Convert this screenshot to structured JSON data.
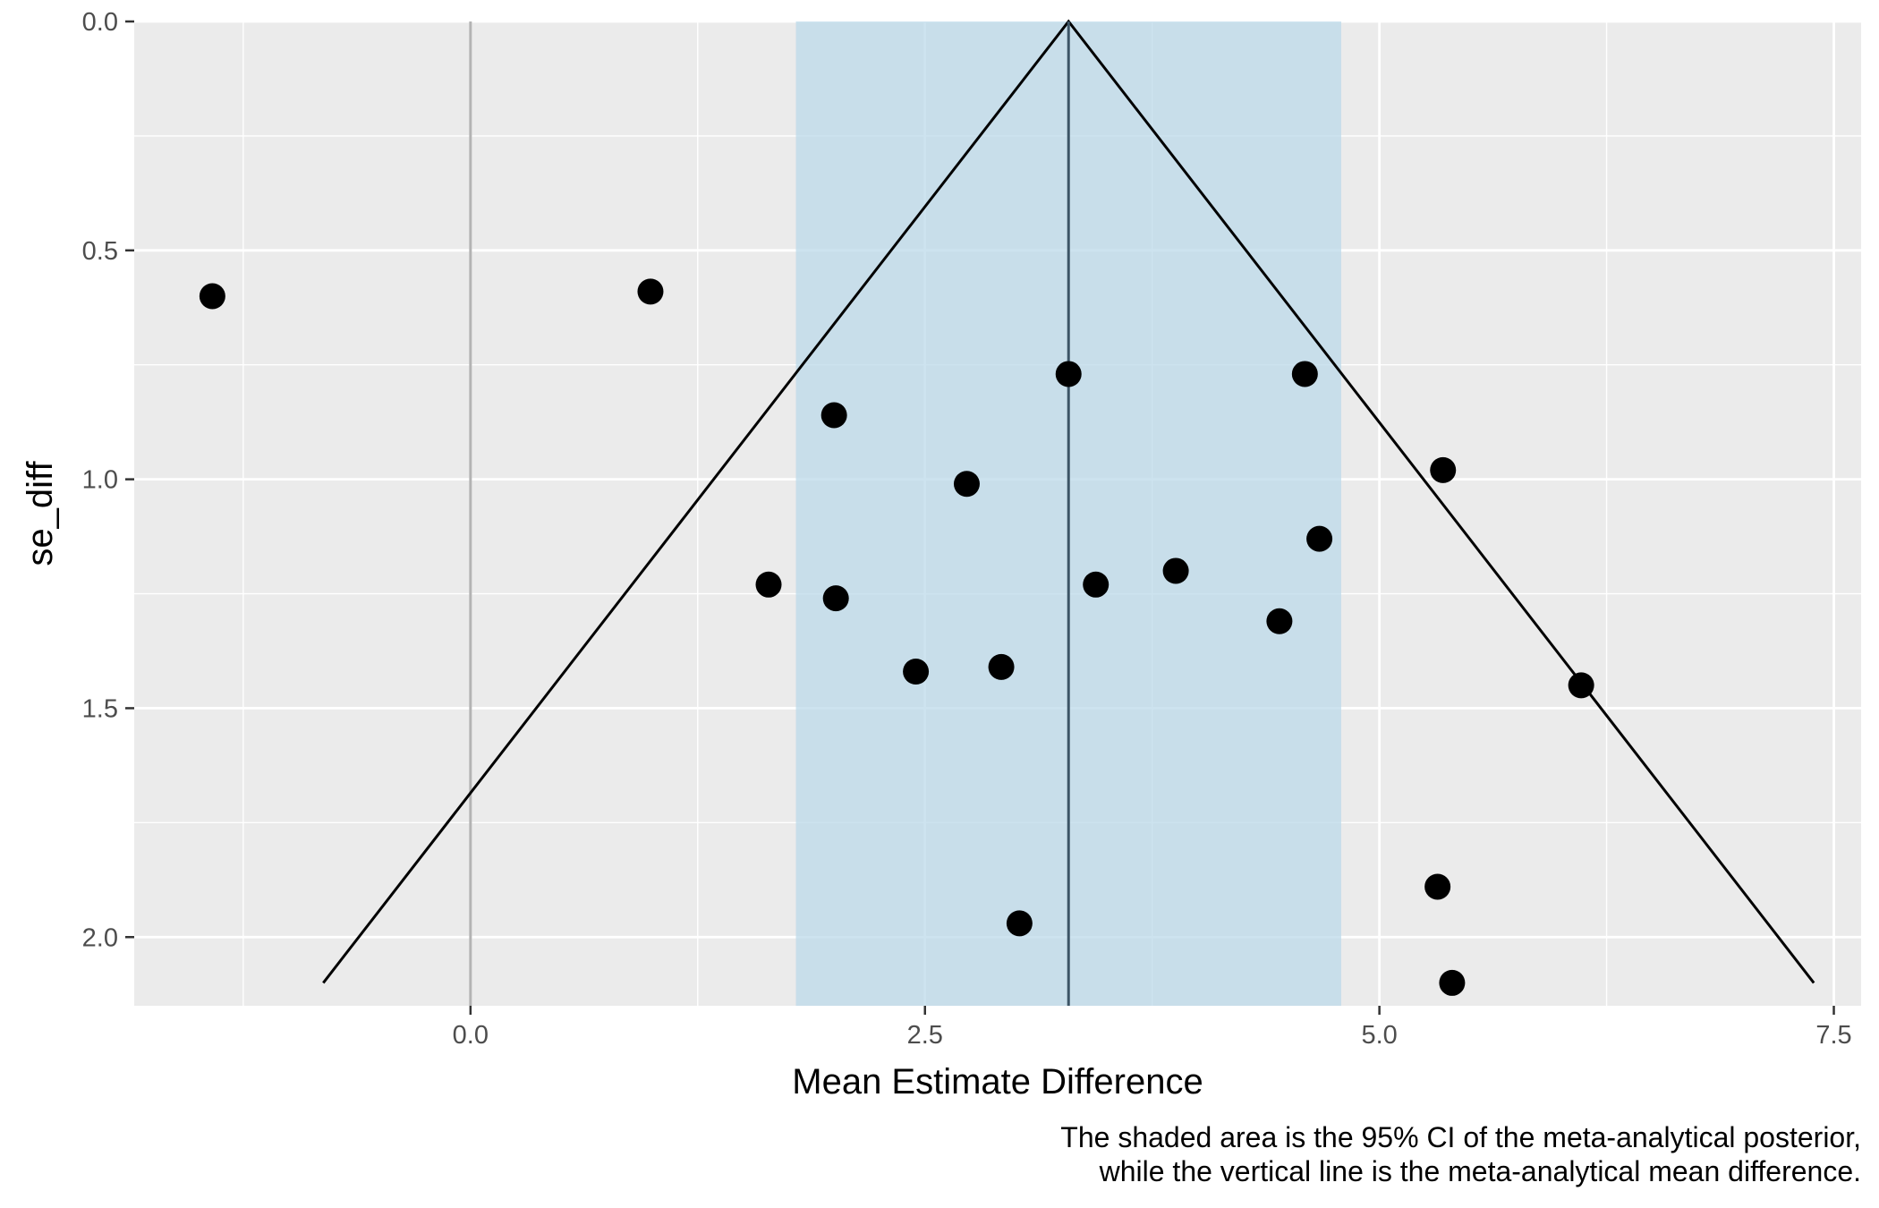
{
  "chart_data": {
    "type": "scatter",
    "xlabel": "Mean Estimate Difference",
    "ylabel": "se_diff",
    "xlim": [
      -1.85,
      7.65
    ],
    "ylim": [
      0.0,
      2.15
    ],
    "y_reversed": true,
    "x_ticks": [
      {
        "value": 0.0,
        "label": "0.0"
      },
      {
        "value": 2.5,
        "label": "2.5"
      },
      {
        "value": 5.0,
        "label": "5.0"
      },
      {
        "value": 7.5,
        "label": "7.5"
      }
    ],
    "y_ticks": [
      {
        "value": 0.0,
        "label": "0.0"
      },
      {
        "value": 0.5,
        "label": "0.5"
      },
      {
        "value": 1.0,
        "label": "1.0"
      },
      {
        "value": 1.5,
        "label": "1.5"
      },
      {
        "value": 2.0,
        "label": "2.0"
      }
    ],
    "grid": true,
    "ci_band": {
      "low": 1.79,
      "high": 4.79,
      "color": "#bcd9ea"
    },
    "mean_line": {
      "x": 3.29,
      "color": "#3d5566"
    },
    "reference_line": {
      "x": 0.0,
      "color": "#b3b3b3"
    },
    "funnel": {
      "apex": [
        3.29,
        0.0
      ],
      "bottom_y": 2.1,
      "half_width_at_bottom": 4.1,
      "color": "#000000"
    },
    "points": [
      {
        "x": -1.42,
        "y": 0.6
      },
      {
        "x": 0.99,
        "y": 0.59
      },
      {
        "x": 2.0,
        "y": 0.86
      },
      {
        "x": 3.29,
        "y": 0.77
      },
      {
        "x": 4.59,
        "y": 0.77
      },
      {
        "x": 2.73,
        "y": 1.01
      },
      {
        "x": 5.35,
        "y": 0.98
      },
      {
        "x": 4.67,
        "y": 1.13
      },
      {
        "x": 1.64,
        "y": 1.23
      },
      {
        "x": 2.01,
        "y": 1.26
      },
      {
        "x": 3.44,
        "y": 1.23
      },
      {
        "x": 3.88,
        "y": 1.2
      },
      {
        "x": 4.45,
        "y": 1.31
      },
      {
        "x": 2.45,
        "y": 1.42
      },
      {
        "x": 2.92,
        "y": 1.41
      },
      {
        "x": 6.11,
        "y": 1.45
      },
      {
        "x": 5.32,
        "y": 1.89
      },
      {
        "x": 3.02,
        "y": 1.97
      },
      {
        "x": 5.4,
        "y": 2.1
      }
    ],
    "panel_background": "#ebebeb",
    "grid_color": "#ffffff",
    "point_color": "#000000"
  },
  "caption": {
    "line1": "The shaded area is the 95% CI of the meta-analytical posterior,",
    "line2": "while the vertical line is the meta-analytical mean difference."
  }
}
